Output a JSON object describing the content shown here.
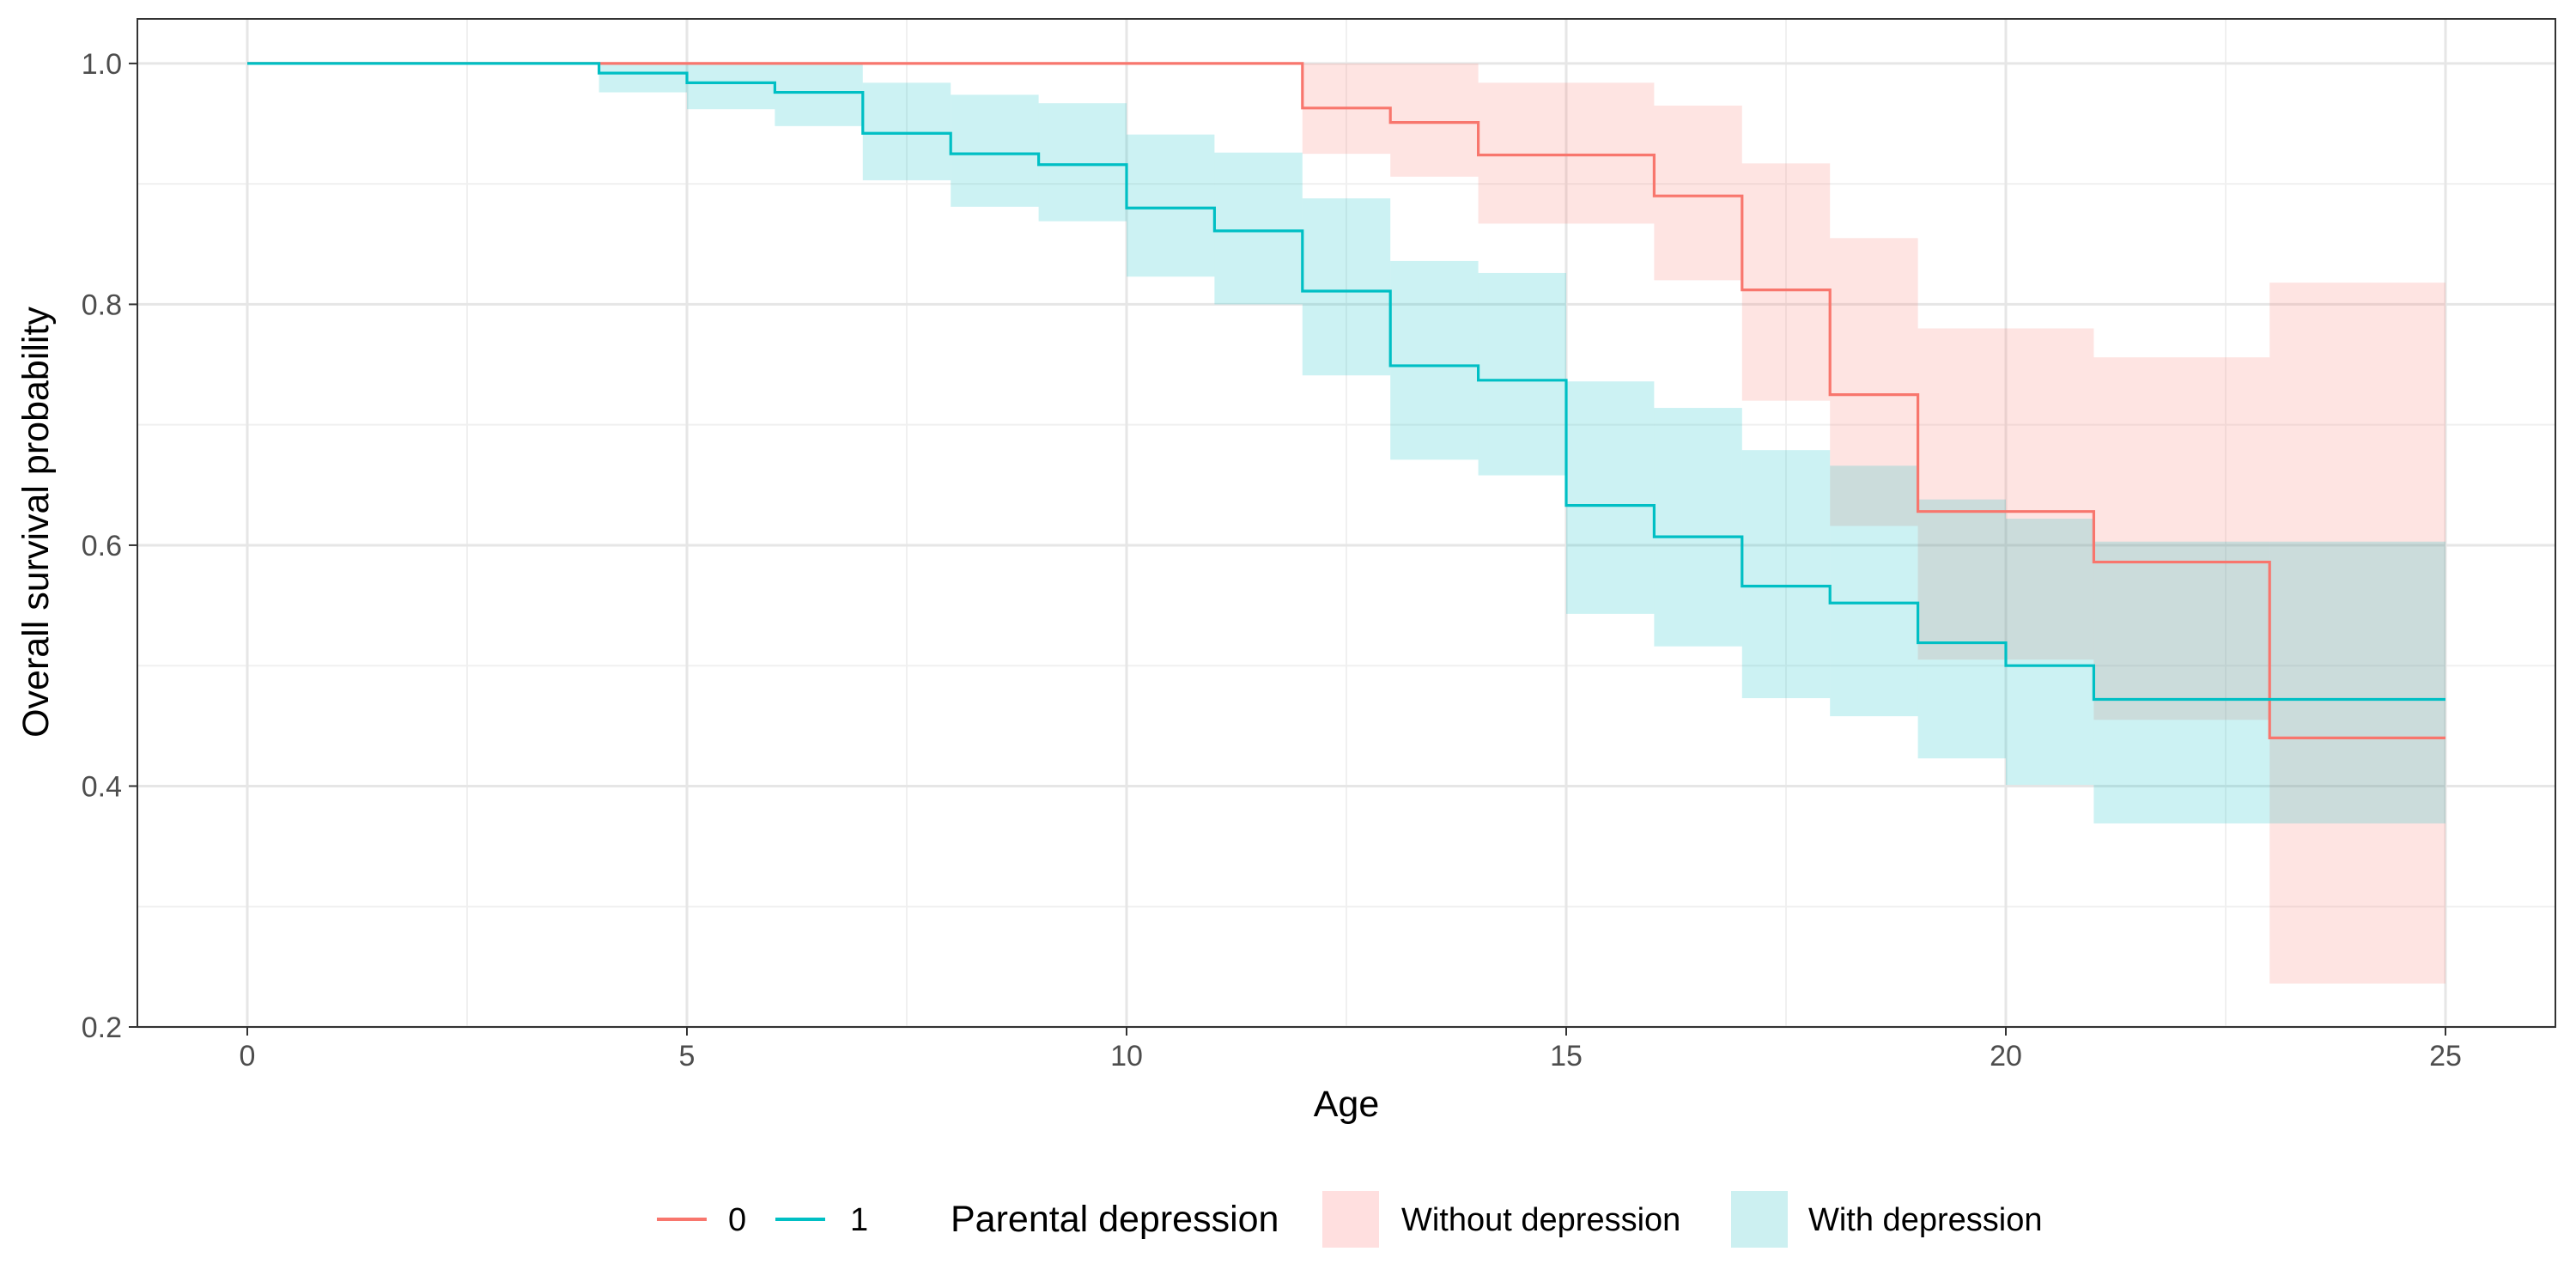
{
  "chart_data": {
    "type": "line",
    "subtype": "kaplan-meier step survival curves with confidence bands",
    "xlabel": "Age",
    "ylabel": "Overall survival probability",
    "xlim": [
      -1.25,
      26.25
    ],
    "ylim": [
      0.2,
      1.037
    ],
    "x_ticks": [
      0,
      5,
      10,
      15,
      20,
      25
    ],
    "y_ticks": [
      0.2,
      0.4,
      0.6,
      0.8,
      1.0
    ],
    "x_tick_labels": [
      "0",
      "5",
      "10",
      "15",
      "20",
      "25"
    ],
    "y_tick_labels": [
      "0.2",
      "0.4",
      "0.6",
      "0.8",
      "1.0"
    ],
    "grid": true,
    "theme": "bw",
    "legend_placement": "bottom",
    "legend": {
      "line_title": "",
      "line_entries": [
        "0",
        "1"
      ],
      "band_title": "Parental depression",
      "band_entries": [
        "Without depression",
        "With depression"
      ]
    },
    "series": [
      {
        "name": "0",
        "band_name": "Without depression",
        "color": "#F8766D",
        "band_color": "#FFDFDF",
        "steps": [
          {
            "start": 0,
            "end": 12,
            "surv": 1.0,
            "lower": 1.0,
            "upper": 1.0
          },
          {
            "start": 12,
            "end": 13,
            "surv": 0.963,
            "lower": 0.925,
            "upper": 1.0
          },
          {
            "start": 13,
            "end": 14,
            "surv": 0.951,
            "lower": 0.906,
            "upper": 1.0
          },
          {
            "start": 14,
            "end": 16,
            "surv": 0.924,
            "lower": 0.867,
            "upper": 0.984
          },
          {
            "start": 16,
            "end": 17,
            "surv": 0.89,
            "lower": 0.82,
            "upper": 0.965
          },
          {
            "start": 17,
            "end": 18,
            "surv": 0.812,
            "lower": 0.72,
            "upper": 0.917
          },
          {
            "start": 18,
            "end": 19,
            "surv": 0.725,
            "lower": 0.616,
            "upper": 0.855
          },
          {
            "start": 19,
            "end": 21,
            "surv": 0.628,
            "lower": 0.505,
            "upper": 0.78
          },
          {
            "start": 21,
            "end": 23,
            "surv": 0.586,
            "lower": 0.455,
            "upper": 0.756
          },
          {
            "start": 23,
            "end": 25,
            "surv": 0.44,
            "lower": 0.236,
            "upper": 0.818
          }
        ]
      },
      {
        "name": "1",
        "band_name": "With depression",
        "color": "#00BFC4",
        "band_color": "#CCF0F1",
        "steps": [
          {
            "start": 0,
            "end": 4,
            "surv": 1.0,
            "lower": 1.0,
            "upper": 1.0
          },
          {
            "start": 4,
            "end": 5,
            "surv": 0.992,
            "lower": 0.976,
            "upper": 1.0
          },
          {
            "start": 5,
            "end": 6,
            "surv": 0.984,
            "lower": 0.962,
            "upper": 1.0
          },
          {
            "start": 6,
            "end": 7,
            "surv": 0.976,
            "lower": 0.948,
            "upper": 1.0
          },
          {
            "start": 7,
            "end": 8,
            "surv": 0.942,
            "lower": 0.903,
            "upper": 0.984
          },
          {
            "start": 8,
            "end": 9,
            "surv": 0.925,
            "lower": 0.881,
            "upper": 0.974
          },
          {
            "start": 9,
            "end": 10,
            "surv": 0.916,
            "lower": 0.869,
            "upper": 0.967
          },
          {
            "start": 10,
            "end": 11,
            "surv": 0.88,
            "lower": 0.823,
            "upper": 0.941
          },
          {
            "start": 11,
            "end": 12,
            "surv": 0.861,
            "lower": 0.8,
            "upper": 0.926
          },
          {
            "start": 12,
            "end": 13,
            "surv": 0.811,
            "lower": 0.741,
            "upper": 0.888
          },
          {
            "start": 13,
            "end": 14,
            "surv": 0.749,
            "lower": 0.671,
            "upper": 0.836
          },
          {
            "start": 14,
            "end": 15,
            "surv": 0.737,
            "lower": 0.658,
            "upper": 0.826
          },
          {
            "start": 15,
            "end": 16,
            "surv": 0.633,
            "lower": 0.543,
            "upper": 0.736
          },
          {
            "start": 16,
            "end": 17,
            "surv": 0.607,
            "lower": 0.516,
            "upper": 0.714
          },
          {
            "start": 17,
            "end": 18,
            "surv": 0.566,
            "lower": 0.473,
            "upper": 0.679
          },
          {
            "start": 18,
            "end": 19,
            "surv": 0.552,
            "lower": 0.458,
            "upper": 0.666
          },
          {
            "start": 19,
            "end": 20,
            "surv": 0.519,
            "lower": 0.423,
            "upper": 0.638
          },
          {
            "start": 20,
            "end": 21,
            "surv": 0.5,
            "lower": 0.401,
            "upper": 0.622
          },
          {
            "start": 21,
            "end": 25,
            "surv": 0.472,
            "lower": 0.369,
            "upper": 0.603
          }
        ]
      }
    ]
  }
}
